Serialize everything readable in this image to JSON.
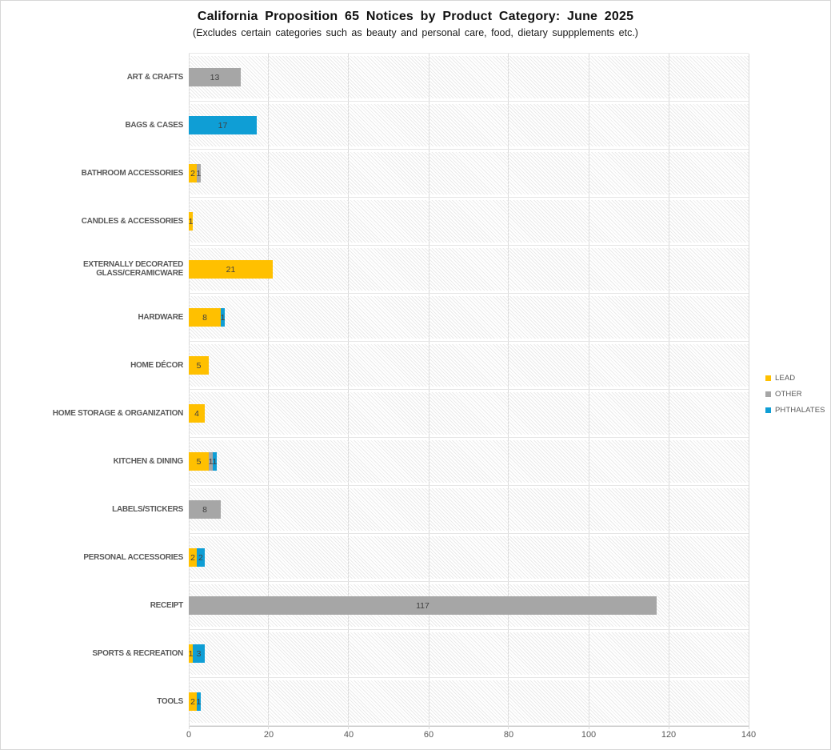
{
  "title": "California Proposition 65 Notices by Product Category: June 2025",
  "subtitle": "(Excludes certain categories such as beauty and personal care, food, dietary suppplements etc.)",
  "chart_data": {
    "type": "bar",
    "orientation": "horizontal",
    "stacked": true,
    "title": "California Proposition 65 Notices by Product Category: June 2025",
    "subtitle": "(Excludes certain categories such as beauty and personal care, food, dietary suppplements etc.)",
    "categories": [
      "ART & CRAFTS",
      "BAGS & CASES",
      "BATHROOM ACCESSORIES",
      "CANDLES & ACCESSORIES",
      "EXTERNALLY DECORATED GLASS/CERAMICWARE",
      "HARDWARE",
      "HOME DÉCOR",
      "HOME STORAGE & ORGANIZATION",
      "KITCHEN & DINING",
      "LABELS/STICKERS",
      "PERSONAL ACCESSORIES",
      "RECEIPT",
      "SPORTS & RECREATION",
      "TOOLS"
    ],
    "series": [
      {
        "name": "LEAD",
        "color": "#FFC000",
        "values": [
          0,
          0,
          2,
          1,
          21,
          8,
          5,
          4,
          5,
          0,
          2,
          0,
          1,
          2
        ]
      },
      {
        "name": "OTHER",
        "color": "#A6A6A6",
        "values": [
          13,
          0,
          1,
          0,
          0,
          0,
          0,
          0,
          1,
          8,
          0,
          117,
          0,
          0
        ]
      },
      {
        "name": "PHTHALATES",
        "color": "#0F9ED5",
        "values": [
          0,
          17,
          0,
          0,
          0,
          1,
          0,
          0,
          1,
          0,
          2,
          0,
          3,
          1
        ]
      }
    ],
    "xlim": [
      0,
      140
    ],
    "x_ticks": [
      0,
      20,
      40,
      60,
      80,
      100,
      120,
      140
    ],
    "xlabel": "",
    "ylabel": "",
    "grid": true,
    "plot_fill": "diagonal-hatch",
    "data_labels": true,
    "data_label_color": "#404040",
    "legend_position": "right",
    "legend": [
      "LEAD",
      "OTHER",
      "PHTHALATES"
    ]
  }
}
